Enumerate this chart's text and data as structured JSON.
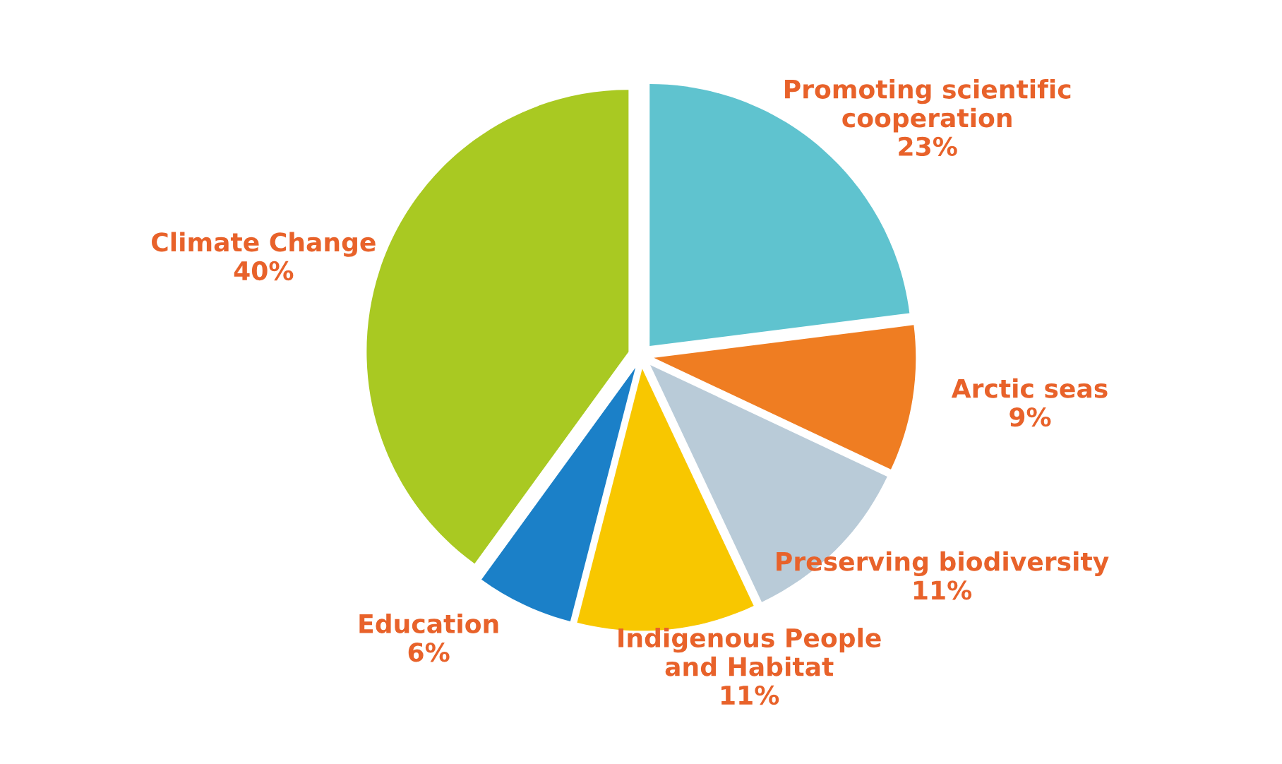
{
  "chart_data": {
    "type": "pie",
    "categories": [
      "Promoting scientific\ncooperation",
      "Arctic seas",
      "Preserving biodiversity",
      "Indigenous People\nand Habitat",
      "Education",
      "Climate Change"
    ],
    "values": [
      23,
      9,
      11,
      11,
      6,
      40
    ],
    "value_labels": [
      "23%",
      "9%",
      "11%",
      "11%",
      "6%",
      "40%"
    ],
    "colors": [
      "#5fc3cf",
      "#ef7d22",
      "#b9cbd8",
      "#f8c700",
      "#1b80c8",
      "#a9c922"
    ],
    "legend": false
  }
}
